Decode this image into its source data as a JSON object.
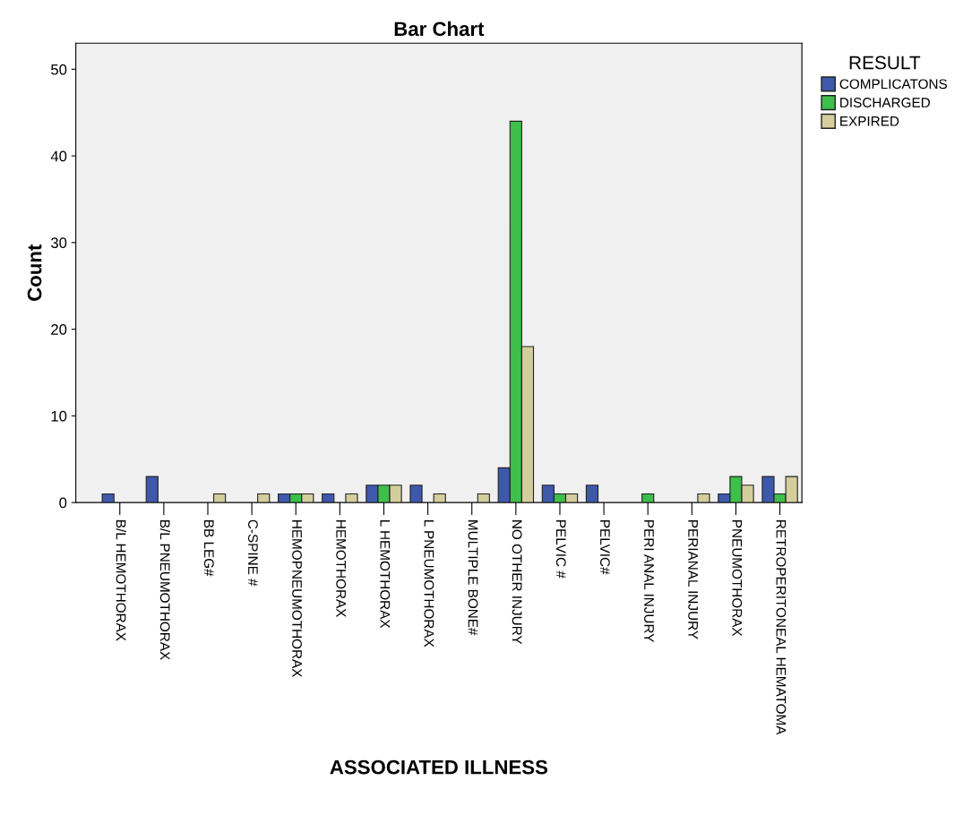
{
  "chart_data": {
    "type": "bar",
    "title": "Bar Chart",
    "xlabel": "ASSOCIATED ILLNESS",
    "ylabel": "Count",
    "legend_title": "RESULT",
    "legend": "right",
    "categories": [
      "B/L HEMOTHORAX",
      "B/L PNEUMOTHORAX",
      "BB LEG#",
      "C-SPINE #",
      "HEMOPNEUMOTHORAX",
      "HEMOTHORAX",
      "L HEMOTHORAX",
      "L PNEUMOTHORAX",
      "MULTIPLE BONE#",
      "NO OTHER INJURY",
      "PELVIC #",
      "PELVIC#",
      "PERI ANAL INJURY",
      "PERIANAL INJURY",
      "PNEUMOTHORAX",
      "RETROPERITONEAL HEMATOMA"
    ],
    "series": [
      {
        "name": "COMPLICATONS",
        "color": "#3e58ac",
        "values": [
          1,
          3,
          null,
          null,
          1,
          1,
          2,
          2,
          null,
          4,
          2,
          2,
          null,
          null,
          1,
          3
        ]
      },
      {
        "name": "DISCHARGED",
        "color": "#3ebe4a",
        "values": [
          null,
          null,
          null,
          null,
          1,
          null,
          2,
          null,
          null,
          44,
          1,
          null,
          1,
          null,
          3,
          1
        ]
      },
      {
        "name": "EXPIRED",
        "color": "#d3ce9b",
        "values": [
          null,
          null,
          1,
          1,
          1,
          1,
          2,
          1,
          1,
          18,
          1,
          null,
          null,
          1,
          2,
          3
        ]
      }
    ],
    "ylim": [
      0,
      53
    ],
    "yticks": [
      0,
      10,
      20,
      30,
      40,
      50
    ],
    "grid": false
  }
}
